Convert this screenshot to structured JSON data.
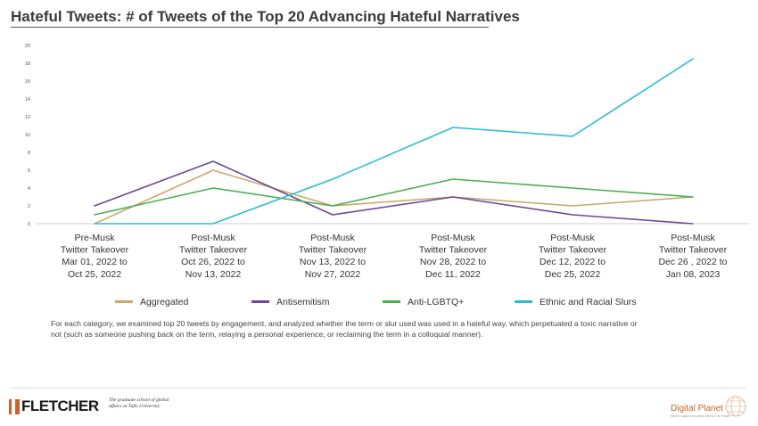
{
  "header": {
    "title": "Hateful Tweets: # of Tweets of the Top 20 Advancing Hateful Narratives"
  },
  "chart_data": {
    "type": "line",
    "title": "Hateful Tweets: # of Tweets of the Top 20 Advancing Hateful Narratives",
    "xlabel": "",
    "ylabel": "",
    "ylim": [
      0,
      20
    ],
    "yticks": [
      "0",
      "2",
      "4",
      "6",
      "8",
      "10",
      "12",
      "14",
      "16",
      "18",
      "20"
    ],
    "grid": false,
    "legend_position": "bottom",
    "categories": [
      [
        "Pre-Musk",
        "Twitter Takeover",
        "Mar 01, 2022 to",
        "Oct 25, 2022"
      ],
      [
        "Post-Musk",
        "Twitter Takeover",
        "Oct 26, 2022 to",
        "Nov 13, 2022"
      ],
      [
        "Post-Musk",
        "Twitter Takeover",
        "Nov 13, 2022 to",
        "Nov 27, 2022"
      ],
      [
        "Post-Musk",
        "Twitter Takeover",
        "Nov 28, 2022 to",
        "Dec 11, 2022"
      ],
      [
        "Post-Musk",
        "Twitter Takeover",
        "Dec 12, 2022 to",
        "Dec 25, 2022"
      ],
      [
        "Post-Musk",
        "Twitter Takeover",
        "Dec 26 , 2022 to",
        "Jan 08, 2023"
      ]
    ],
    "series": [
      {
        "name": "Aggregated",
        "color": "#c8a96e",
        "values": [
          0,
          6,
          2,
          3,
          2,
          3
        ]
      },
      {
        "name": "Antisemitism",
        "color": "#6a4a96",
        "values": [
          2,
          7,
          1,
          3,
          1,
          0
        ]
      },
      {
        "name": "Anti-LGBTQ+",
        "color": "#4caf50",
        "values": [
          1,
          4,
          2,
          5,
          4,
          3
        ]
      },
      {
        "name": "Ethnic and Racial Slurs",
        "color": "#2bbcd4",
        "values": [
          0,
          0,
          5,
          10.8,
          9.8,
          18.5
        ]
      }
    ]
  },
  "footnote": "For each category, we examined top 20 tweets by engagement, and analyzed whether the term or slur used was used in a hateful way, which perpetuated a toxic narrative or not (such as someone pushing back on the term, relaying a personal experience, or reclaiming the term in a colloquial manner).",
  "branding": {
    "fletcher_logo": "FLETCHER",
    "fletcher_tagline": "The graduate school of global affairs at Tufts University",
    "digital_planet_logo": "Digital Planet",
    "digital_planet_tagline": "Where Digital Innovation Meets The Planet"
  }
}
